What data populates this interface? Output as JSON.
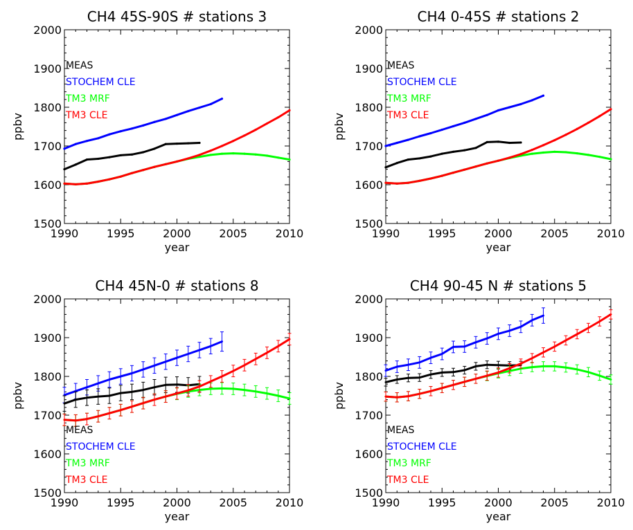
{
  "chart_data": [
    {
      "type": "line",
      "title": "CH4 45S-90S # stations 3",
      "xlabel": "year",
      "ylabel": "ppbv",
      "xlim": [
        1990,
        2010
      ],
      "ylim": [
        1500,
        2000
      ],
      "xticks": [
        1990,
        1995,
        2000,
        2005,
        2010
      ],
      "yticks": [
        1500,
        1600,
        1700,
        1800,
        1900,
        2000
      ],
      "legend_position": "top-left",
      "error_bars": false,
      "series": [
        {
          "name": "MEAS",
          "color": "#000000",
          "x": [
            1990,
            1991,
            1992,
            1993,
            1994,
            1995,
            1996,
            1997,
            1998,
            1999,
            2000,
            2001,
            2002
          ],
          "y": [
            1640,
            1652,
            1665,
            1667,
            1671,
            1676,
            1678,
            1684,
            1693,
            1705,
            1706,
            1707,
            1708
          ]
        },
        {
          "name": "STOCHEM CLE",
          "color": "#0000ff",
          "x": [
            1990,
            1991,
            1992,
            1993,
            1994,
            1995,
            1996,
            1997,
            1998,
            1999,
            2000,
            2001,
            2002,
            2003,
            2004
          ],
          "y": [
            1693,
            1705,
            1713,
            1720,
            1730,
            1738,
            1745,
            1753,
            1762,
            1770,
            1780,
            1790,
            1799,
            1808,
            1822
          ]
        },
        {
          "name": "TM3 MRF",
          "color": "#00ff00",
          "x": [
            1990,
            1991,
            1992,
            1993,
            1994,
            1995,
            1996,
            1997,
            1998,
            1999,
            2000,
            2001,
            2002,
            2003,
            2004,
            2005,
            2006,
            2007,
            2008,
            2009,
            2010
          ],
          "y": [
            1603,
            1601,
            1603,
            1608,
            1614,
            1621,
            1630,
            1638,
            1646,
            1653,
            1660,
            1667,
            1672,
            1677,
            1680,
            1681,
            1680,
            1678,
            1675,
            1670,
            1665
          ]
        },
        {
          "name": "TM3 CLE",
          "color": "#ff0000",
          "x": [
            1990,
            1991,
            1992,
            1993,
            1994,
            1995,
            1996,
            1997,
            1998,
            1999,
            2000,
            2001,
            2002,
            2003,
            2004,
            2005,
            2006,
            2007,
            2008,
            2009,
            2010
          ],
          "y": [
            1603,
            1601,
            1603,
            1608,
            1614,
            1621,
            1630,
            1638,
            1646,
            1653,
            1660,
            1668,
            1677,
            1688,
            1700,
            1713,
            1727,
            1742,
            1758,
            1774,
            1792
          ]
        }
      ]
    },
    {
      "type": "line",
      "title": "CH4 0-45S # stations 2",
      "xlabel": "year",
      "ylabel": "ppbv",
      "xlim": [
        1990,
        2010
      ],
      "ylim": [
        1500,
        2000
      ],
      "xticks": [
        1990,
        1995,
        2000,
        2005,
        2010
      ],
      "yticks": [
        1500,
        1600,
        1700,
        1800,
        1900,
        2000
      ],
      "legend_position": "top-left",
      "error_bars": false,
      "series": [
        {
          "name": "MEAS",
          "color": "#000000",
          "x": [
            1990,
            1991,
            1992,
            1993,
            1994,
            1995,
            1996,
            1997,
            1998,
            1999,
            2000,
            2001,
            2002
          ],
          "y": [
            1645,
            1656,
            1665,
            1668,
            1673,
            1680,
            1685,
            1689,
            1695,
            1710,
            1711,
            1708,
            1709
          ]
        },
        {
          "name": "STOCHEM CLE",
          "color": "#0000ff",
          "x": [
            1990,
            1991,
            1992,
            1993,
            1994,
            1995,
            1996,
            1997,
            1998,
            1999,
            2000,
            2001,
            2002,
            2003,
            2004
          ],
          "y": [
            1700,
            1708,
            1716,
            1725,
            1733,
            1742,
            1751,
            1760,
            1770,
            1780,
            1792,
            1800,
            1808,
            1818,
            1830
          ]
        },
        {
          "name": "TM3 MRF",
          "color": "#00ff00",
          "x": [
            1990,
            1991,
            1992,
            1993,
            1994,
            1995,
            1996,
            1997,
            1998,
            1999,
            2000,
            2001,
            2002,
            2003,
            2004,
            2005,
            2006,
            2007,
            2008,
            2009,
            2010
          ],
          "y": [
            1605,
            1603,
            1605,
            1610,
            1616,
            1623,
            1631,
            1639,
            1647,
            1655,
            1662,
            1669,
            1675,
            1680,
            1683,
            1685,
            1684,
            1681,
            1677,
            1672,
            1666
          ]
        },
        {
          "name": "TM3 CLE",
          "color": "#ff0000",
          "x": [
            1990,
            1991,
            1992,
            1993,
            1994,
            1995,
            1996,
            1997,
            1998,
            1999,
            2000,
            2001,
            2002,
            2003,
            2004,
            2005,
            2006,
            2007,
            2008,
            2009,
            2010
          ],
          "y": [
            1605,
            1603,
            1605,
            1610,
            1616,
            1623,
            1631,
            1639,
            1647,
            1655,
            1662,
            1670,
            1679,
            1690,
            1702,
            1715,
            1729,
            1744,
            1760,
            1777,
            1795
          ]
        }
      ]
    },
    {
      "type": "line",
      "title": "CH4 45N-0 # stations 8",
      "xlabel": "year",
      "ylabel": "ppbv",
      "xlim": [
        1990,
        2010
      ],
      "ylim": [
        1500,
        2000
      ],
      "xticks": [
        1990,
        1995,
        2000,
        2005,
        2010
      ],
      "yticks": [
        1500,
        1600,
        1700,
        1800,
        1900,
        2000
      ],
      "legend_position": "bottom-left",
      "error_bars": true,
      "series": [
        {
          "name": "MEAS",
          "color": "#000000",
          "x": [
            1990,
            1991,
            1992,
            1993,
            1994,
            1995,
            1996,
            1997,
            1998,
            1999,
            2000,
            2001,
            2002
          ],
          "y": [
            1730,
            1740,
            1745,
            1748,
            1750,
            1757,
            1760,
            1765,
            1772,
            1778,
            1779,
            1777,
            1780
          ],
          "err": [
            20,
            20,
            20,
            20,
            20,
            20,
            20,
            20,
            20,
            20,
            20,
            20,
            20
          ]
        },
        {
          "name": "STOCHEM CLE",
          "color": "#0000ff",
          "x": [
            1990,
            1991,
            1992,
            1993,
            1994,
            1995,
            1996,
            1997,
            1998,
            1999,
            2000,
            2001,
            2002,
            2003,
            2004
          ],
          "y": [
            1752,
            1762,
            1772,
            1782,
            1792,
            1800,
            1808,
            1818,
            1828,
            1838,
            1848,
            1858,
            1868,
            1878,
            1890
          ],
          "err": [
            20,
            20,
            20,
            20,
            20,
            20,
            20,
            20,
            20,
            20,
            20,
            20,
            20,
            20,
            25
          ]
        },
        {
          "name": "TM3 MRF",
          "color": "#00ff00",
          "x": [
            1990,
            1991,
            1992,
            1993,
            1994,
            1995,
            1996,
            1997,
            1998,
            1999,
            2000,
            2001,
            2002,
            2003,
            2004,
            2005,
            2006,
            2007,
            2008,
            2009,
            2010
          ],
          "y": [
            1688,
            1686,
            1690,
            1697,
            1705,
            1713,
            1722,
            1731,
            1740,
            1748,
            1755,
            1761,
            1765,
            1768,
            1769,
            1768,
            1765,
            1761,
            1756,
            1750,
            1743
          ],
          "err": [
            15,
            15,
            15,
            15,
            15,
            15,
            15,
            15,
            15,
            15,
            15,
            15,
            15,
            15,
            15,
            15,
            15,
            15,
            15,
            15,
            15
          ]
        },
        {
          "name": "TM3 CLE",
          "color": "#ff0000",
          "x": [
            1990,
            1991,
            1992,
            1993,
            1994,
            1995,
            1996,
            1997,
            1998,
            1999,
            2000,
            2001,
            2002,
            2003,
            2004,
            2005,
            2006,
            2007,
            2008,
            2009,
            2010
          ],
          "y": [
            1688,
            1686,
            1690,
            1697,
            1705,
            1713,
            1722,
            1731,
            1740,
            1748,
            1756,
            1764,
            1774,
            1787,
            1800,
            1814,
            1829,
            1845,
            1861,
            1878,
            1896
          ],
          "err": [
            15,
            15,
            15,
            15,
            15,
            15,
            15,
            15,
            15,
            15,
            15,
            15,
            15,
            15,
            15,
            15,
            15,
            15,
            15,
            15,
            15
          ]
        }
      ]
    },
    {
      "type": "line",
      "title": "CH4 90-45 N # stations 5",
      "xlabel": "year",
      "ylabel": "ppbv",
      "xlim": [
        1990,
        2010
      ],
      "ylim": [
        1500,
        2000
      ],
      "xticks": [
        1990,
        1995,
        2000,
        2005,
        2010
      ],
      "yticks": [
        1500,
        1600,
        1700,
        1800,
        1900,
        2000
      ],
      "legend_position": "bottom-left",
      "error_bars": true,
      "series": [
        {
          "name": "MEAS",
          "color": "#000000",
          "x": [
            1990,
            1991,
            1992,
            1993,
            1994,
            1995,
            1996,
            1997,
            1998,
            1999,
            2000,
            2001,
            2002
          ],
          "y": [
            1785,
            1792,
            1796,
            1797,
            1805,
            1810,
            1811,
            1816,
            1826,
            1830,
            1829,
            1828,
            1829
          ],
          "err": [
            10,
            10,
            10,
            10,
            10,
            10,
            10,
            10,
            10,
            10,
            10,
            10,
            10
          ]
        },
        {
          "name": "STOCHEM CLE",
          "color": "#0000ff",
          "x": [
            1990,
            1991,
            1992,
            1993,
            1994,
            1995,
            1996,
            1997,
            1998,
            1999,
            2000,
            2001,
            2002,
            2003,
            2004
          ],
          "y": [
            1815,
            1825,
            1830,
            1836,
            1848,
            1858,
            1876,
            1877,
            1888,
            1898,
            1910,
            1918,
            1928,
            1945,
            1957
          ],
          "err": [
            15,
            15,
            15,
            15,
            15,
            15,
            15,
            15,
            15,
            15,
            15,
            15,
            15,
            15,
            20
          ]
        },
        {
          "name": "TM3 MRF",
          "color": "#00ff00",
          "x": [
            1990,
            1991,
            1992,
            1993,
            1994,
            1995,
            1996,
            1997,
            1998,
            1999,
            2000,
            2001,
            2002,
            2003,
            2004,
            2005,
            2006,
            2007,
            2008,
            2009,
            2010
          ],
          "y": [
            1748,
            1746,
            1749,
            1755,
            1762,
            1770,
            1778,
            1786,
            1794,
            1801,
            1808,
            1814,
            1820,
            1824,
            1826,
            1826,
            1823,
            1818,
            1811,
            1802,
            1792
          ],
          "err": [
            12,
            12,
            12,
            12,
            12,
            12,
            12,
            12,
            12,
            12,
            12,
            12,
            12,
            12,
            12,
            12,
            12,
            12,
            12,
            12,
            12
          ]
        },
        {
          "name": "TM3 CLE",
          "color": "#ff0000",
          "x": [
            1990,
            1991,
            1992,
            1993,
            1994,
            1995,
            1996,
            1997,
            1998,
            1999,
            2000,
            2001,
            2002,
            2003,
            2004,
            2005,
            2006,
            2007,
            2008,
            2009,
            2010
          ],
          "y": [
            1748,
            1746,
            1749,
            1755,
            1762,
            1770,
            1778,
            1786,
            1794,
            1802,
            1810,
            1821,
            1833,
            1847,
            1862,
            1877,
            1893,
            1909,
            1925,
            1942,
            1960
          ],
          "err": [
            12,
            12,
            12,
            12,
            12,
            12,
            12,
            12,
            12,
            12,
            12,
            12,
            12,
            12,
            12,
            12,
            12,
            12,
            12,
            12,
            12
          ]
        }
      ]
    }
  ]
}
